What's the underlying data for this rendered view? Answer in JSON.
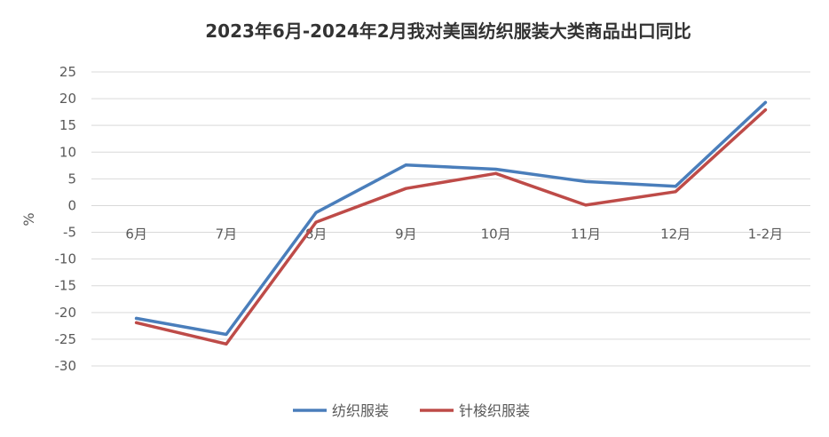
{
  "chart_data": {
    "type": "line",
    "title": "2023年6月-2024年2月我对美国纺织服装大类商品出口同比",
    "xlabel": "",
    "ylabel": "%",
    "categories": [
      "6月",
      "7月",
      "8月",
      "9月",
      "10月",
      "11月",
      "12月",
      "1-2月"
    ],
    "ylim": [
      -30,
      25
    ],
    "yticks": [
      25,
      20,
      15,
      10,
      5,
      0,
      -5,
      -10,
      -15,
      -20,
      -25,
      -30
    ],
    "grid": true,
    "legend_position": "bottom",
    "series": [
      {
        "name": "纺织服装",
        "color": "#4A7EBB",
        "values": [
          -21.1,
          -24.1,
          -1.3,
          7.6,
          6.8,
          4.5,
          3.6,
          19.3
        ]
      },
      {
        "name": "针梭织服装",
        "color": "#BE4B48",
        "values": [
          -21.9,
          -25.9,
          -3.1,
          3.2,
          6.0,
          0.1,
          2.6,
          17.9
        ]
      }
    ]
  }
}
